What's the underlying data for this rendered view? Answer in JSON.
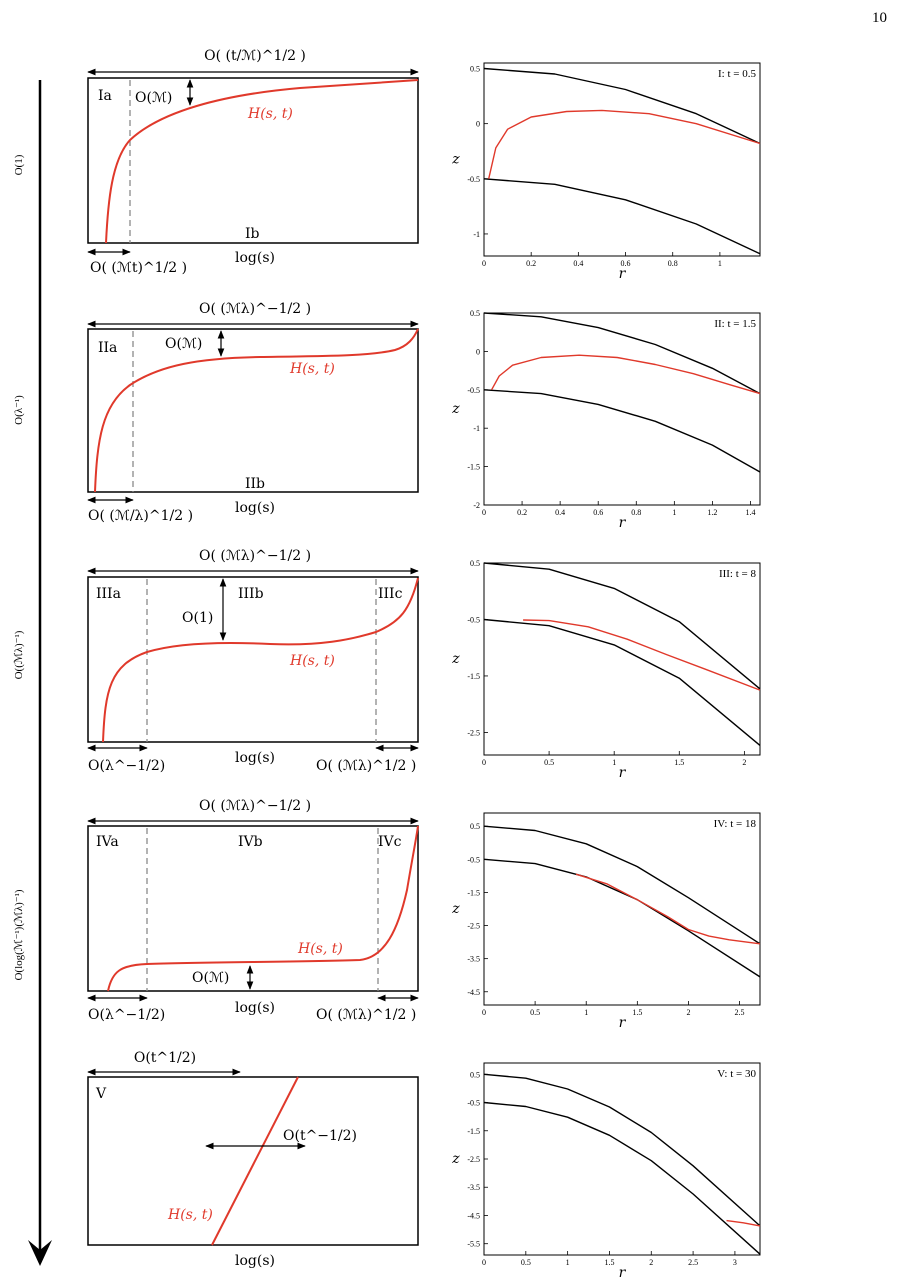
{
  "page_number": "10",
  "timeline": {
    "stage_labels": [
      "O(1)",
      "O(λ⁻¹)",
      "O((ℳλ)⁻¹)",
      "O(log(ℳ⁻¹)(ℳλ)⁻¹)"
    ]
  },
  "colors": {
    "curve": "#e0392b",
    "black": "#000000",
    "dashed": "#8a8a8a"
  },
  "schematics": [
    {
      "id": "I",
      "top_label": "O( (t/ℳ)^1/2 )",
      "bottom_left": "O( (ℳt)^1/2 )",
      "bottom_right": "",
      "regions": [
        "Ia",
        "Ib"
      ],
      "height_label": "O(ℳ)",
      "curve_label": "H(s, t)",
      "xlabel": "log(s)"
    },
    {
      "id": "II",
      "top_label": "O( (ℳλ)^−1/2 )",
      "bottom_left": "O( (ℳ/λ)^1/2 )",
      "bottom_right": "",
      "regions": [
        "IIa",
        "IIb"
      ],
      "height_label": "O(ℳ)",
      "curve_label": "H(s, t)",
      "xlabel": "log(s)"
    },
    {
      "id": "III",
      "top_label": "O( (ℳλ)^−1/2 )",
      "bottom_left": "O(λ^−1/2)",
      "bottom_right": "O( (ℳλ)^1/2 )",
      "regions": [
        "IIIa",
        "IIIb",
        "IIIc"
      ],
      "height_label": "O(1)",
      "curve_label": "H(s, t)",
      "xlabel": "log(s)"
    },
    {
      "id": "IV",
      "top_label": "O( (ℳλ)^−1/2 )",
      "bottom_left": "O(λ^−1/2)",
      "bottom_right": "O( (ℳλ)^1/2 )",
      "regions": [
        "IVa",
        "IVb",
        "IVc"
      ],
      "height_label": "O(ℳ)",
      "curve_label": "H(s, t)",
      "xlabel": "log(s)"
    },
    {
      "id": "V",
      "top_label": "O(t^1/2)",
      "bottom_left": "",
      "bottom_right": "",
      "regions": [
        "V"
      ],
      "height_label": "O(t^−1/2)",
      "curve_label": "H(s, t)",
      "xlabel": "log(s)"
    }
  ],
  "chart_data": [
    {
      "type": "line",
      "title": "I: t = 0.5",
      "xlabel": "r",
      "ylabel": "z",
      "xlim": [
        0,
        1.17
      ],
      "ylim": [
        -1.2,
        0.55
      ],
      "xticks": [
        0,
        0.2,
        0.4,
        0.6,
        0.8,
        1
      ],
      "yticks": [
        -1,
        -0.5,
        0,
        0.5
      ],
      "series": [
        {
          "color": "#000000",
          "x": [
            0,
            0.3,
            0.6,
            0.9,
            1.17
          ],
          "y": [
            0.5,
            0.45,
            0.31,
            0.09,
            -0.18
          ]
        },
        {
          "color": "#000000",
          "x": [
            0,
            0.3,
            0.6,
            0.9,
            1.17
          ],
          "y": [
            -0.5,
            -0.55,
            -0.69,
            -0.91,
            -1.18
          ]
        },
        {
          "color": "#e0392b",
          "x": [
            0.02,
            0.05,
            0.1,
            0.2,
            0.35,
            0.5,
            0.7,
            0.9,
            1.17
          ],
          "y": [
            -0.5,
            -0.22,
            -0.05,
            0.06,
            0.11,
            0.12,
            0.09,
            0.0,
            -0.18
          ]
        }
      ]
    },
    {
      "type": "line",
      "title": "II: t = 1.5",
      "xlabel": "r",
      "ylabel": "z",
      "xlim": [
        0,
        1.45
      ],
      "ylim": [
        -2.0,
        0.5
      ],
      "xticks": [
        0,
        0.2,
        0.4,
        0.6,
        0.8,
        1,
        1.2,
        1.4
      ],
      "yticks": [
        -2,
        -1.5,
        -1,
        -0.5,
        0,
        0.5
      ],
      "series": [
        {
          "color": "#000000",
          "x": [
            0,
            0.3,
            0.6,
            0.9,
            1.2,
            1.45
          ],
          "y": [
            0.5,
            0.45,
            0.31,
            0.09,
            -0.22,
            -0.55
          ]
        },
        {
          "color": "#000000",
          "x": [
            0,
            0.3,
            0.6,
            0.9,
            1.2,
            1.45
          ],
          "y": [
            -0.5,
            -0.55,
            -0.69,
            -0.91,
            -1.22,
            -1.57
          ]
        },
        {
          "color": "#e0392b",
          "x": [
            0.04,
            0.08,
            0.15,
            0.3,
            0.5,
            0.7,
            0.9,
            1.1,
            1.3,
            1.45
          ],
          "y": [
            -0.5,
            -0.32,
            -0.18,
            -0.08,
            -0.05,
            -0.08,
            -0.17,
            -0.29,
            -0.44,
            -0.55
          ]
        }
      ]
    },
    {
      "type": "line",
      "title": "III: t = 8",
      "xlabel": "r",
      "ylabel": "z",
      "xlim": [
        0,
        2.12
      ],
      "ylim": [
        -2.9,
        0.5
      ],
      "xticks": [
        0,
        0.5,
        1,
        1.5,
        2
      ],
      "yticks": [
        -2.5,
        -1.5,
        -0.5,
        0.5
      ],
      "series": [
        {
          "color": "#000000",
          "x": [
            0,
            0.5,
            1,
            1.5,
            2.12
          ],
          "y": [
            0.5,
            0.39,
            0.05,
            -0.54,
            -1.73
          ]
        },
        {
          "color": "#000000",
          "x": [
            0,
            0.5,
            1,
            1.5,
            2.12
          ],
          "y": [
            -0.5,
            -0.61,
            -0.95,
            -1.54,
            -2.73
          ]
        },
        {
          "color": "#e0392b",
          "x": [
            0.3,
            0.5,
            0.8,
            1.1,
            1.4,
            1.7,
            2.12
          ],
          "y": [
            -0.51,
            -0.52,
            -0.63,
            -0.85,
            -1.12,
            -1.38,
            -1.75
          ]
        }
      ]
    },
    {
      "type": "line",
      "title": "IV: t = 18",
      "xlabel": "r",
      "ylabel": "z",
      "xlim": [
        0,
        2.7
      ],
      "ylim": [
        -4.9,
        0.9
      ],
      "xticks": [
        0,
        0.5,
        1,
        1.5,
        2,
        2.5
      ],
      "yticks": [
        -4.5,
        -3.5,
        -2.5,
        -1.5,
        -0.5,
        0.5
      ],
      "series": [
        {
          "color": "#000000",
          "x": [
            0,
            0.5,
            1,
            1.5,
            2,
            2.7
          ],
          "y": [
            0.5,
            0.37,
            -0.03,
            -0.72,
            -1.66,
            -3.05
          ]
        },
        {
          "color": "#000000",
          "x": [
            0,
            0.5,
            1,
            1.5,
            2,
            2.7
          ],
          "y": [
            -0.5,
            -0.63,
            -1.03,
            -1.72,
            -2.66,
            -4.05
          ]
        },
        {
          "color": "#e0392b",
          "x": [
            0.9,
            1.2,
            1.5,
            1.8,
            2.0,
            2.2,
            2.4,
            2.7
          ],
          "y": [
            -0.95,
            -1.24,
            -1.72,
            -2.24,
            -2.62,
            -2.82,
            -2.93,
            -3.05
          ]
        }
      ]
    },
    {
      "type": "line",
      "title": "V: t = 30",
      "xlabel": "r",
      "ylabel": "z",
      "xlim": [
        0,
        3.3
      ],
      "ylim": [
        -5.9,
        0.9
      ],
      "xticks": [
        0,
        0.5,
        1,
        1.5,
        2,
        2.5,
        3
      ],
      "yticks": [
        -5.5,
        -4.5,
        -3.5,
        -2.5,
        -1.5,
        -0.5,
        0.5
      ],
      "series": [
        {
          "color": "#000000",
          "x": [
            0,
            0.5,
            1,
            1.5,
            2,
            2.5,
            3.3
          ],
          "y": [
            0.5,
            0.36,
            -0.02,
            -0.66,
            -1.56,
            -2.74,
            -4.87
          ]
        },
        {
          "color": "#000000",
          "x": [
            0,
            0.5,
            1,
            1.5,
            2,
            2.5,
            3.3
          ],
          "y": [
            -0.5,
            -0.64,
            -1.02,
            -1.66,
            -2.56,
            -3.74,
            -5.87
          ]
        },
        {
          "color": "#e0392b",
          "x": [
            2.9,
            3.1,
            3.3
          ],
          "y": [
            -4.68,
            -4.76,
            -4.87
          ]
        }
      ]
    }
  ]
}
